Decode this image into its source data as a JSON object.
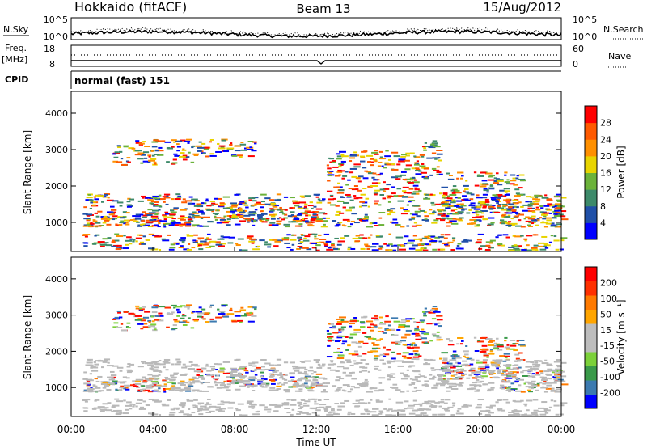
{
  "header": {
    "station": "Hokkaido (fitACF)",
    "beam": "Beam 13",
    "date": "15/Aug/2012"
  },
  "strips": {
    "nsky_label": "N.Sky",
    "nsearch_label": "N.Search",
    "nsky_ticks": [
      "10^5",
      "10^0"
    ],
    "nsearch_ticks": [
      "10^5",
      "10^0"
    ],
    "freq_label": "Freq.",
    "freq_unit": "[MHz]",
    "freq_ticks": [
      "18",
      "8"
    ],
    "nave_label": "Nave",
    "nave_ticks": [
      "60",
      "0"
    ],
    "cpid_label": "CPID",
    "cpid_value": "normal (fast) 151"
  },
  "colors": {
    "power_scale": [
      "#0000ff",
      "#2050a8",
      "#3d8a6a",
      "#6bb23a",
      "#e8d400",
      "#ff9000",
      "#ff5a00",
      "#ff0000"
    ],
    "velocity_scale": [
      "#0000ff",
      "#3c7ab0",
      "#3a9a4a",
      "#7cd13a",
      "#bdbdbd",
      "#bdbdbd",
      "#ffa500",
      "#ff7a00",
      "#ff3000",
      "#ff0000"
    ],
    "ground_scatter": "#b9b9b9"
  },
  "chart_data": [
    {
      "type": "heatmap",
      "name": "power",
      "ylabel": "Slant Range [km]",
      "yticks": [
        "1000",
        "2000",
        "3000",
        "4000"
      ],
      "ylim": [
        200,
        4600
      ],
      "xlim": [
        0,
        24
      ],
      "colorbar_label": "Power [dB]",
      "colorbar_ticks": [
        "28",
        "24",
        "20",
        "16",
        "12",
        "8",
        "4"
      ]
    },
    {
      "type": "heatmap",
      "name": "velocity",
      "ylabel": "Slant Range [km]",
      "yticks": [
        "1000",
        "2000",
        "3000",
        "4000"
      ],
      "ylim": [
        200,
        4600
      ],
      "xlim": [
        0,
        24
      ],
      "colorbar_label": "Velocity [m s⁻¹]",
      "colorbar_ticks": [
        "200",
        "100",
        "50",
        "15",
        "-15",
        "-50",
        "-100",
        "-200"
      ]
    }
  ],
  "xaxis": {
    "ticks": [
      "00:00",
      "04:00",
      "08:00",
      "12:00",
      "16:00",
      "20:00",
      "00:00"
    ],
    "label": "Time UT"
  }
}
